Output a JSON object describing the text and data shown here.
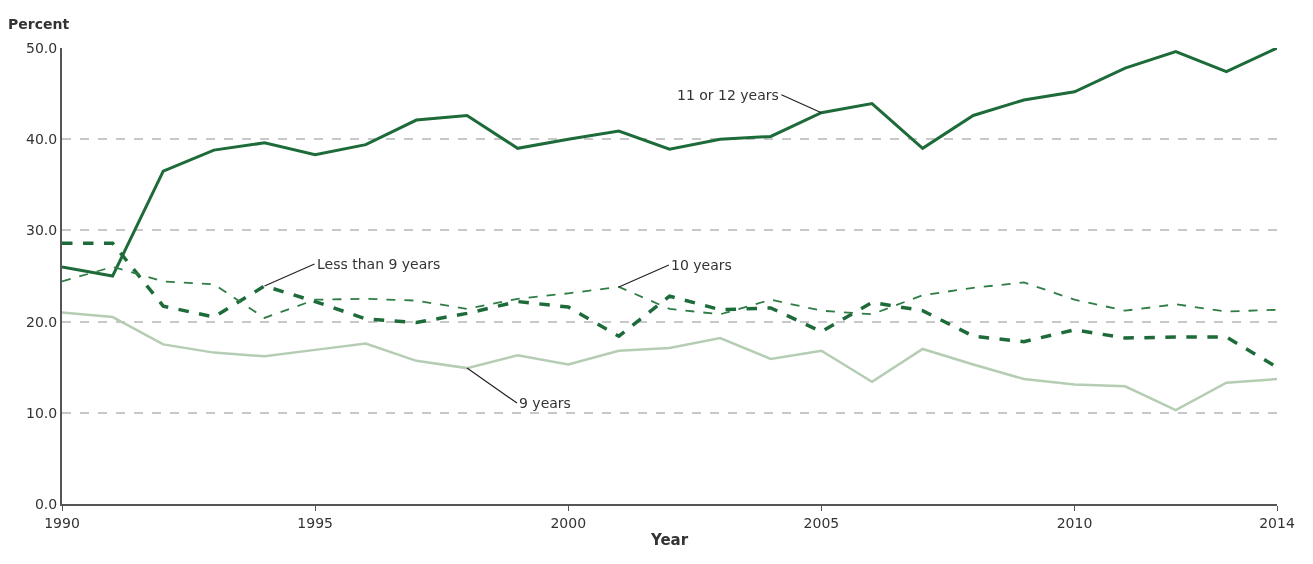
{
  "chart_data": {
    "type": "line",
    "xlabel": "Year",
    "ylabel": "Percent",
    "x": [
      1990,
      1991,
      1992,
      1993,
      1994,
      1995,
      1996,
      1997,
      1998,
      1999,
      2000,
      2001,
      2002,
      2003,
      2004,
      2005,
      2006,
      2007,
      2008,
      2009,
      2010,
      2011,
      2012,
      2013,
      2014
    ],
    "series": [
      {
        "name": "11 or 12 years",
        "color": "#1e6b3a",
        "line_style": "solid",
        "values": [
          26.0,
          25.0,
          36.5,
          38.8,
          39.6,
          38.3,
          39.4,
          42.1,
          42.6,
          39.0,
          40.0,
          40.9,
          38.9,
          40.0,
          40.3,
          42.9,
          43.9,
          39.0,
          42.6,
          44.3,
          45.2,
          47.8,
          49.6,
          47.4,
          50.0
        ]
      },
      {
        "name": "Less than 9 years",
        "color": "#1e6b3a",
        "line_style": "dashed",
        "values": [
          28.6,
          28.6,
          21.7,
          20.5,
          23.9,
          22.2,
          20.3,
          19.9,
          20.9,
          22.2,
          21.6,
          18.4,
          22.8,
          21.3,
          21.5,
          18.9,
          22.1,
          21.2,
          18.4,
          17.8,
          19.1,
          18.2,
          18.3,
          18.3,
          15.0
        ]
      },
      {
        "name": "10 years",
        "color": "#2e7d45",
        "line_style": "dashed",
        "values": [
          24.4,
          26.0,
          24.4,
          24.1,
          20.4,
          22.4,
          22.5,
          22.3,
          21.4,
          22.5,
          23.1,
          23.8,
          21.4,
          20.8,
          22.4,
          21.2,
          20.8,
          22.9,
          23.7,
          24.3,
          22.4,
          21.2,
          21.9,
          21.1,
          21.3
        ]
      },
      {
        "name": "9 years",
        "color": "#b5cdb3",
        "line_style": "solid",
        "values": [
          21.0,
          20.5,
          17.5,
          16.6,
          16.2,
          16.9,
          17.6,
          15.7,
          14.9,
          16.3,
          15.3,
          16.8,
          17.1,
          18.2,
          15.9,
          16.8,
          13.4,
          17.0,
          15.3,
          13.7,
          13.1,
          12.9,
          10.3,
          13.3,
          13.7
        ]
      }
    ],
    "xlim": [
      1990,
      2014
    ],
    "xticks": [
      1990,
      1995,
      2000,
      2005,
      2010,
      2014
    ],
    "ylim": [
      0,
      50
    ],
    "yticks": [
      {
        "value": 0,
        "label": "0.0"
      },
      {
        "value": 10,
        "label": "10.0"
      },
      {
        "value": 20,
        "label": "20.0"
      },
      {
        "value": 30,
        "label": "30.0"
      },
      {
        "value": 40,
        "label": "40.0"
      },
      {
        "value": 50,
        "label": "50.0"
      }
    ],
    "grid": "y",
    "legend": false,
    "marker": "none"
  }
}
